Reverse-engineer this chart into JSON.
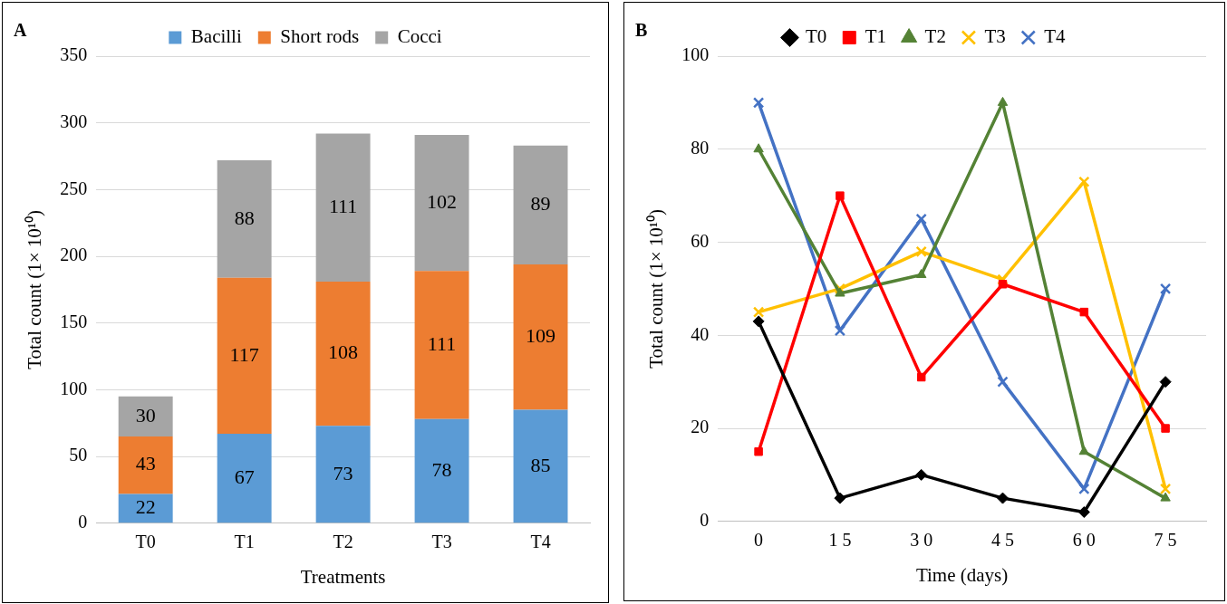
{
  "chart_data": [
    {
      "type": "bar",
      "stacked": true,
      "categories": [
        "T0",
        "T1",
        "T2",
        "T3",
        "T4"
      ],
      "series": [
        {
          "name": "Bacilli",
          "color": "#5b9bd5",
          "values": [
            22,
            67,
            73,
            78,
            85
          ]
        },
        {
          "name": "Short rods",
          "color": "#ed7d31",
          "values": [
            43,
            117,
            108,
            111,
            109
          ]
        },
        {
          "name": "Cocci",
          "color": "#a5a5a5",
          "values": [
            30,
            88,
            111,
            102,
            89
          ]
        }
      ],
      "xlabel": "Treatments",
      "ylabel": "Total count (1× 10¹⁰)",
      "annotations": [
        "A"
      ],
      "ylim": [
        0,
        350
      ],
      "yticks": [
        0,
        50,
        100,
        150,
        200,
        250,
        300,
        350
      ],
      "grid": "y",
      "legend": "top",
      "data_labels": true
    },
    {
      "type": "line",
      "categories": [
        "0",
        "1 5",
        "3 0",
        "4 5",
        "6 0",
        "7 5"
      ],
      "series": [
        {
          "name": "T0",
          "color": "#000000",
          "marker": "diamond",
          "values": [
            43,
            5,
            10,
            5,
            2,
            30
          ]
        },
        {
          "name": "T1",
          "color": "#ff0000",
          "marker": "square",
          "values": [
            15,
            70,
            31,
            51,
            45,
            20
          ]
        },
        {
          "name": "T2",
          "color": "#548235",
          "marker": "triangle",
          "values": [
            80,
            49,
            53,
            90,
            15,
            5
          ]
        },
        {
          "name": "T3",
          "color": "#ffc000",
          "marker": "cross",
          "values": [
            45,
            50,
            58,
            52,
            73,
            7
          ]
        },
        {
          "name": "T4",
          "color": "#4472c4",
          "marker": "cross",
          "values": [
            90,
            41,
            65,
            30,
            7,
            50
          ]
        }
      ],
      "xlabel": "Time (days)",
      "ylabel": "Total count (1× 10¹⁰)",
      "annotations": [
        "B"
      ],
      "ylim": [
        0,
        100
      ],
      "yticks": [
        0,
        20,
        40,
        60,
        80,
        100
      ],
      "grid": "y",
      "legend": "top",
      "line_style": "solid"
    }
  ]
}
